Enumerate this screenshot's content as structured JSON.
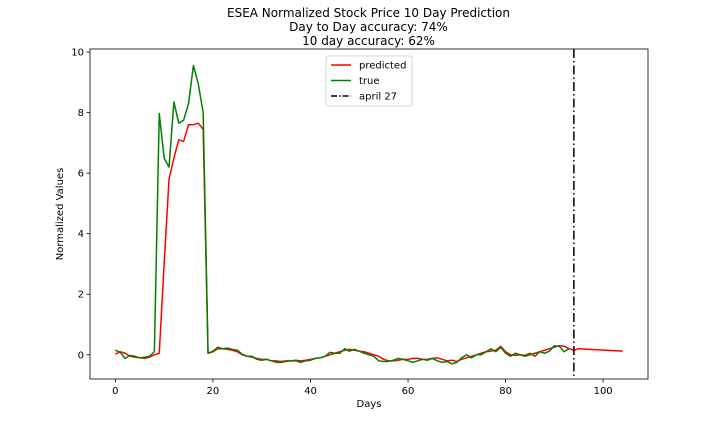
{
  "chart_data": {
    "type": "line",
    "title": [
      "ESEA Normalized Stock Price 10 Day Prediction",
      "Day to Day accuracy: 74%",
      "10 day accuracy: 62%"
    ],
    "xlabel": "Days",
    "ylabel": "Normalized Values",
    "xlim": [
      -5.2,
      109.2
    ],
    "ylim": [
      -0.8,
      10.1
    ],
    "xticks": [
      0,
      20,
      40,
      60,
      80,
      100
    ],
    "yticks": [
      0,
      2,
      4,
      6,
      8,
      10
    ],
    "grid": false,
    "legend_position": "top-center",
    "series": [
      {
        "name": "predicted",
        "color": "#ff0000",
        "x": [
          0,
          1,
          2,
          3,
          4,
          5,
          6,
          7,
          8,
          9,
          10,
          11,
          12,
          13,
          14,
          15,
          16,
          17,
          18,
          19,
          20,
          21,
          22,
          23,
          24,
          25,
          26,
          27,
          28,
          29,
          30,
          31,
          32,
          33,
          34,
          35,
          36,
          37,
          38,
          39,
          40,
          41,
          42,
          43,
          44,
          45,
          46,
          47,
          48,
          49,
          50,
          51,
          52,
          53,
          54,
          55,
          56,
          57,
          58,
          59,
          60,
          61,
          62,
          63,
          64,
          65,
          66,
          67,
          68,
          69,
          70,
          71,
          72,
          73,
          74,
          75,
          76,
          77,
          78,
          79,
          80,
          81,
          82,
          83,
          84,
          85,
          86,
          87,
          88,
          89,
          90,
          91,
          92,
          93,
          94,
          95,
          104
        ],
        "y": [
          0.02,
          0.1,
          0.05,
          -0.05,
          -0.08,
          -0.1,
          -0.12,
          -0.08,
          0.0,
          0.05,
          3.0,
          5.8,
          6.5,
          7.1,
          7.05,
          7.6,
          7.6,
          7.65,
          7.45,
          0.05,
          0.1,
          0.2,
          0.2,
          0.18,
          0.15,
          0.1,
          0.0,
          -0.05,
          -0.08,
          -0.12,
          -0.15,
          -0.15,
          -0.2,
          -0.2,
          -0.22,
          -0.2,
          -0.2,
          -0.18,
          -0.2,
          -0.18,
          -0.15,
          -0.12,
          -0.1,
          -0.05,
          0.0,
          0.05,
          0.1,
          0.15,
          0.18,
          0.15,
          0.12,
          0.1,
          0.05,
          0.0,
          -0.05,
          -0.15,
          -0.2,
          -0.2,
          -0.18,
          -0.15,
          -0.15,
          -0.12,
          -0.12,
          -0.15,
          -0.15,
          -0.12,
          -0.1,
          -0.15,
          -0.2,
          -0.18,
          -0.22,
          -0.15,
          -0.1,
          -0.05,
          0.0,
          0.05,
          0.1,
          0.12,
          0.15,
          0.28,
          0.1,
          0.0,
          -0.02,
          0.0,
          -0.02,
          0.05,
          -0.05,
          0.1,
          0.15,
          0.2,
          0.25,
          0.3,
          0.28,
          0.2,
          0.15,
          0.2,
          0.12
        ]
      },
      {
        "name": "true",
        "color": "#008000",
        "x": [
          0,
          1,
          2,
          3,
          4,
          5,
          6,
          7,
          8,
          9,
          10,
          11,
          12,
          13,
          14,
          15,
          16,
          17,
          18,
          19,
          20,
          21,
          22,
          23,
          24,
          25,
          26,
          27,
          28,
          29,
          30,
          31,
          32,
          33,
          34,
          35,
          36,
          37,
          38,
          39,
          40,
          41,
          42,
          43,
          44,
          45,
          46,
          47,
          48,
          49,
          50,
          51,
          52,
          53,
          54,
          55,
          56,
          57,
          58,
          59,
          60,
          61,
          62,
          63,
          64,
          65,
          66,
          67,
          68,
          69,
          70,
          71,
          72,
          73,
          74,
          75,
          76,
          77,
          78,
          79,
          80,
          81,
          82,
          83,
          84,
          85,
          86,
          87,
          88,
          89,
          90,
          91,
          92,
          93
        ],
        "y": [
          0.15,
          0.08,
          -0.12,
          -0.02,
          -0.05,
          -0.1,
          -0.08,
          -0.05,
          0.1,
          7.97,
          6.5,
          6.2,
          8.35,
          7.65,
          7.75,
          8.3,
          9.55,
          8.95,
          8.0,
          0.05,
          0.12,
          0.25,
          0.2,
          0.22,
          0.18,
          0.15,
          0.02,
          -0.05,
          -0.05,
          -0.15,
          -0.18,
          -0.15,
          -0.2,
          -0.25,
          -0.25,
          -0.22,
          -0.2,
          -0.2,
          -0.25,
          -0.2,
          -0.18,
          -0.12,
          -0.1,
          -0.05,
          0.08,
          0.05,
          0.05,
          0.2,
          0.12,
          0.18,
          0.12,
          0.05,
          0.0,
          -0.05,
          -0.2,
          -0.22,
          -0.22,
          -0.18,
          -0.12,
          -0.15,
          -0.2,
          -0.25,
          -0.2,
          -0.15,
          -0.18,
          -0.12,
          -0.2,
          -0.25,
          -0.22,
          -0.3,
          -0.25,
          -0.1,
          0.0,
          -0.1,
          0.0,
          0.0,
          0.1,
          0.2,
          0.1,
          0.25,
          0.05,
          -0.05,
          0.05,
          0.0,
          -0.05,
          0.0,
          0.05,
          0.1,
          0.05,
          0.12,
          0.3,
          0.28,
          0.1,
          0.2
        ]
      }
    ],
    "vlines": [
      {
        "name": "april 27",
        "x": 94,
        "color": "#000000",
        "style": "dash-dot"
      }
    ]
  }
}
